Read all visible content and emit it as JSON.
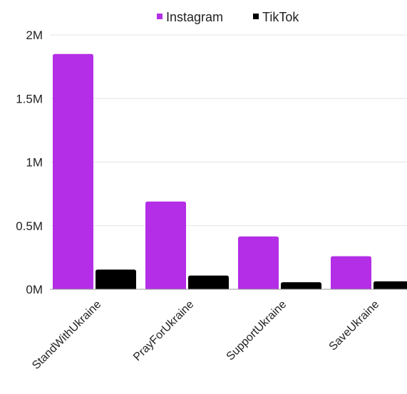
{
  "chart_data": {
    "type": "bar",
    "title": "",
    "xlabel": "",
    "ylabel": "",
    "categories": [
      "StandWithUkraine",
      "PrayForUkraine",
      "SupportUkraine",
      "SaveUkraine"
    ],
    "series": [
      {
        "name": "Instagram",
        "color": "#b32ee6",
        "values": [
          1850000,
          690000,
          415000,
          260000
        ]
      },
      {
        "name": "TikTok",
        "color": "#000000",
        "values": [
          155000,
          108000,
          55000,
          62000
        ]
      }
    ],
    "ylim": [
      0,
      2000000
    ],
    "yticks": [
      {
        "value": 0,
        "label": "0M"
      },
      {
        "value": 500000,
        "label": "0.5M"
      },
      {
        "value": 1000000,
        "label": "1M"
      },
      {
        "value": 1500000,
        "label": "1.5M"
      },
      {
        "value": 2000000,
        "label": "2M"
      }
    ],
    "grid": true,
    "legend_position": "top"
  }
}
